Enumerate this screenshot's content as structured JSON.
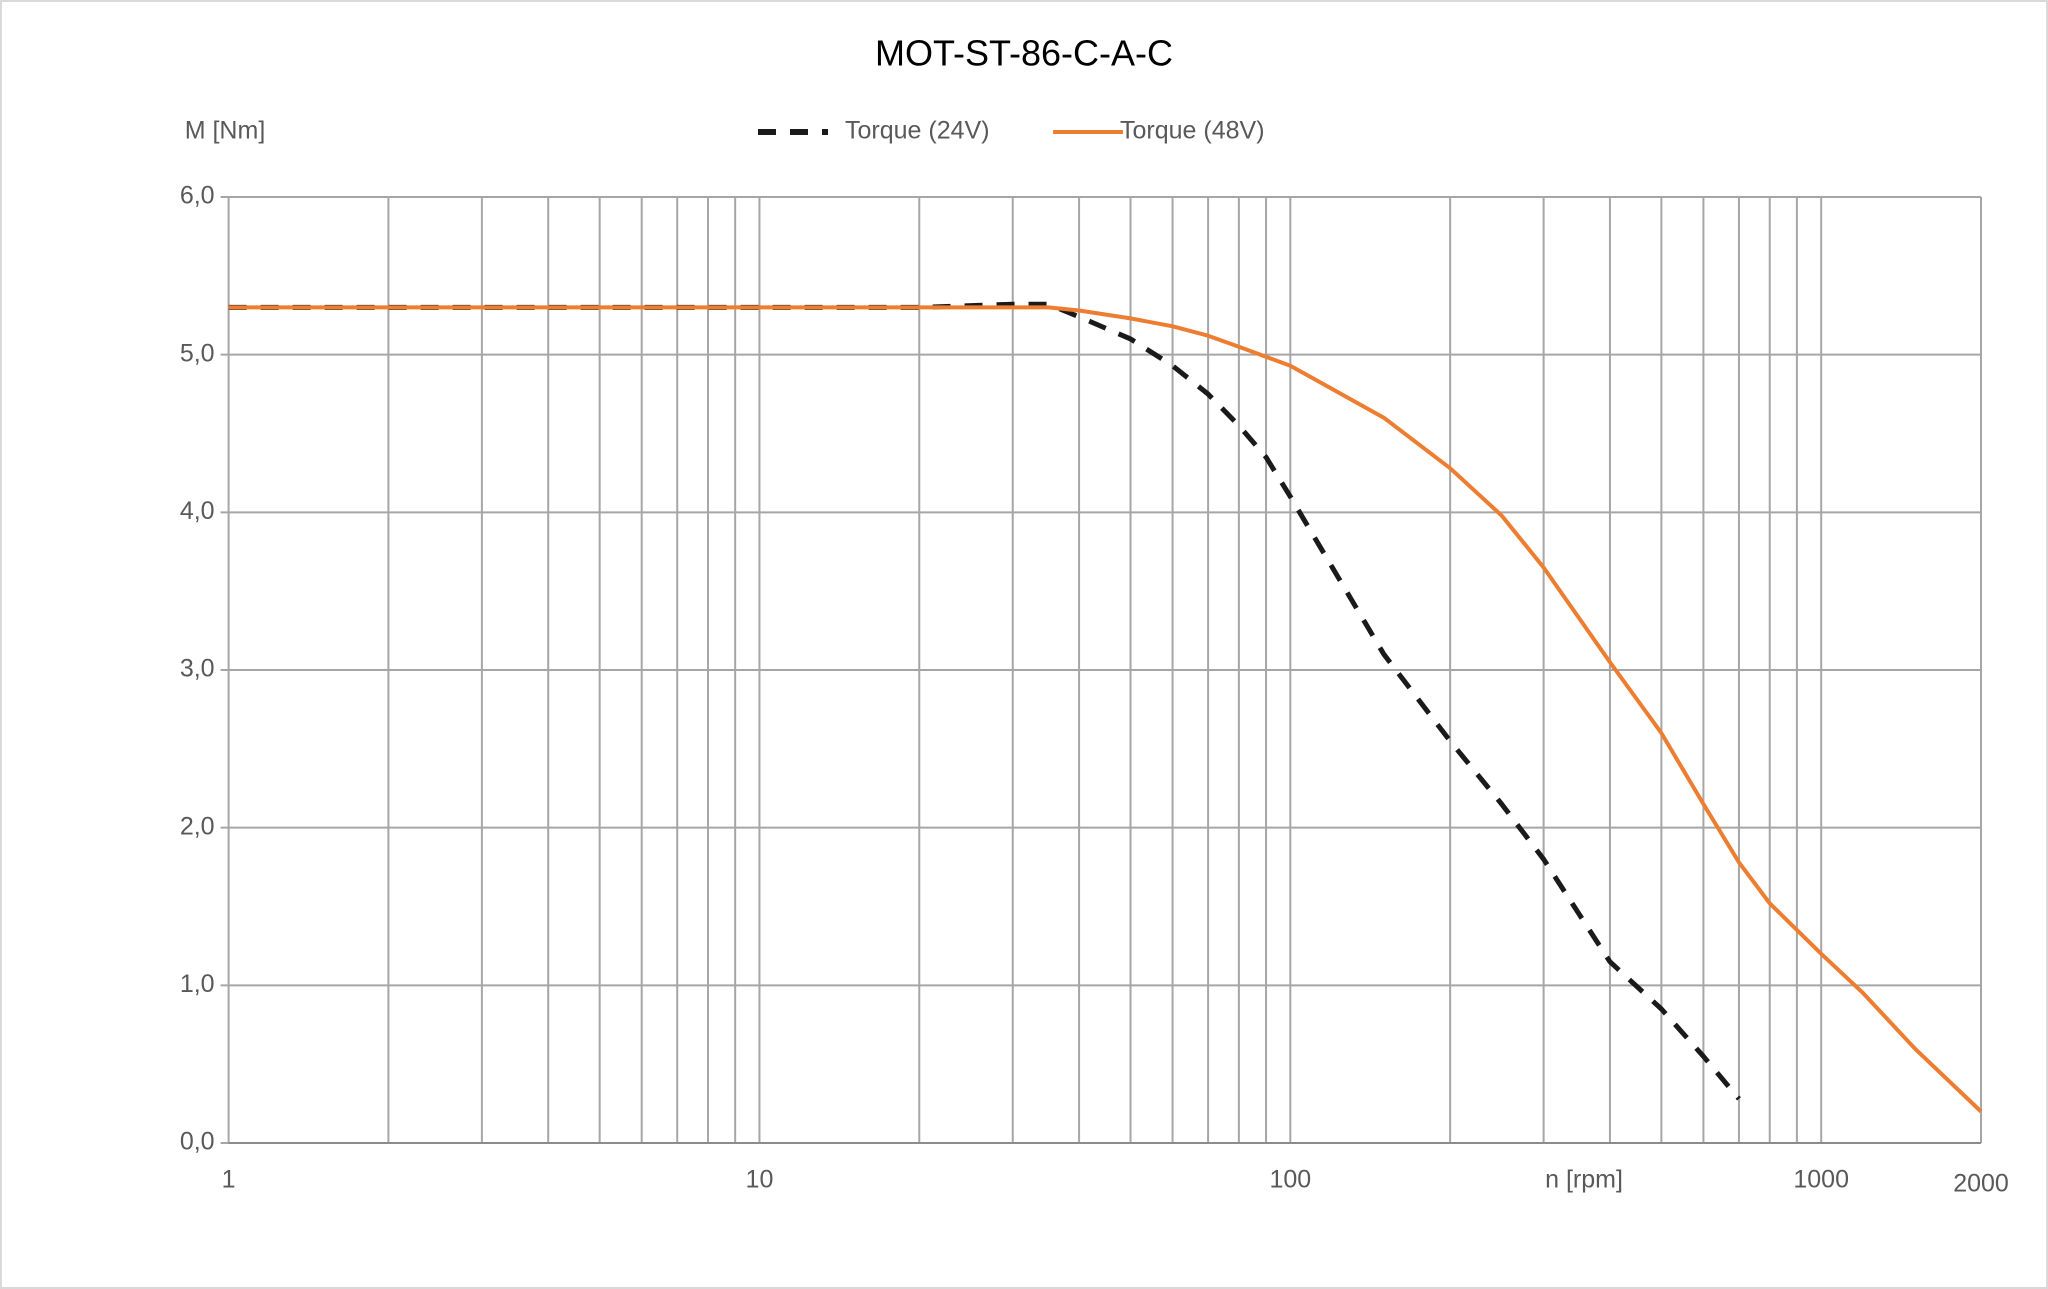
{
  "chart_data": {
    "type": "line",
    "title": "MOT-ST-86-C-A-C",
    "y_label": "M [Nm]",
    "x_label": "n [rpm]",
    "log_x": true,
    "grid": true,
    "legend": "top",
    "xlim": [
      1,
      2000
    ],
    "ylim": [
      0,
      6
    ],
    "xticks": [
      1,
      10,
      100,
      1000,
      2000
    ],
    "yticks": [
      {
        "value": 0,
        "label": "0,0"
      },
      {
        "value": 1,
        "label": "1,0"
      },
      {
        "value": 2,
        "label": "2,0"
      },
      {
        "value": 3,
        "label": "3,0"
      },
      {
        "value": 4,
        "label": "4,0"
      },
      {
        "value": 5,
        "label": "5,0"
      },
      {
        "value": 6,
        "label": "6,0"
      }
    ],
    "series": [
      {
        "name": "Torque (24V)",
        "color": "#1a1a1a",
        "dash": true,
        "x": [
          1,
          2,
          5,
          10,
          20,
          30,
          35,
          40,
          50,
          60,
          70,
          80,
          90,
          100,
          150,
          200,
          250,
          300,
          400,
          500,
          600,
          700
        ],
        "values": [
          5.3,
          5.3,
          5.3,
          5.3,
          5.3,
          5.32,
          5.32,
          5.24,
          5.1,
          4.93,
          4.75,
          4.55,
          4.35,
          4.1,
          3.1,
          2.55,
          2.15,
          1.8,
          1.15,
          0.85,
          0.55,
          0.28
        ]
      },
      {
        "name": "Torque (48V)",
        "color": "#ed7d31",
        "dash": false,
        "x": [
          1,
          2,
          5,
          10,
          20,
          30,
          35,
          40,
          50,
          60,
          70,
          80,
          100,
          150,
          200,
          250,
          300,
          400,
          500,
          600,
          700,
          800,
          1000,
          1200,
          1500,
          2000
        ],
        "values": [
          5.3,
          5.3,
          5.3,
          5.3,
          5.3,
          5.3,
          5.3,
          5.28,
          5.23,
          5.18,
          5.12,
          5.05,
          4.93,
          4.6,
          4.28,
          3.98,
          3.65,
          3.05,
          2.6,
          2.15,
          1.78,
          1.52,
          1.2,
          0.95,
          0.6,
          0.2
        ]
      }
    ]
  }
}
